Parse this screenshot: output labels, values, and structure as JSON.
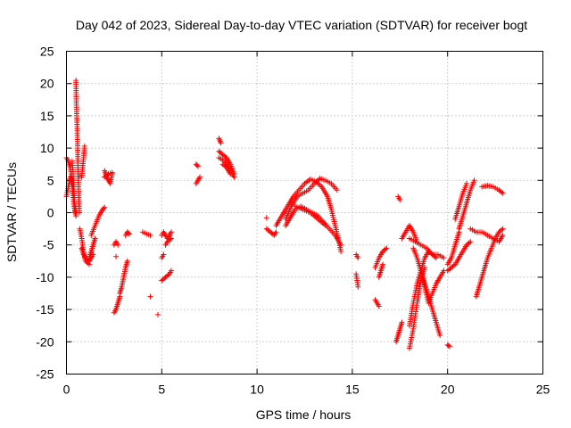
{
  "chart_data": {
    "type": "scatter",
    "title": "Day 042 of 2023, Sidereal Day-to-day VTEC variation (SDTVAR) for receiver bogt",
    "xlabel": "GPS time / hours",
    "ylabel": "SDTVAR / TECUs",
    "xlim": [
      0,
      25
    ],
    "ylim": [
      -25,
      25
    ],
    "xticks": [
      "0",
      "5",
      "10",
      "15",
      "20",
      "25"
    ],
    "yticks": [
      "-25",
      "-20",
      "-15",
      "-10",
      "-5",
      "0",
      "5",
      "10",
      "15",
      "20",
      "25"
    ],
    "grid": true,
    "marker": "+",
    "color": "#ff0000",
    "series": [
      {
        "name": "SDTVAR",
        "segments": [
          [
            [
              0.0,
              8.5
            ],
            [
              0.1,
              8.0
            ],
            [
              0.2,
              7.0
            ],
            [
              0.3,
              5.0
            ],
            [
              0.4,
              2.0
            ],
            [
              0.5,
              0.0
            ]
          ],
          [
            [
              0.0,
              2.5
            ],
            [
              0.1,
              4.0
            ],
            [
              0.2,
              5.5
            ],
            [
              0.3,
              4.0
            ],
            [
              0.4,
              1.0
            ],
            [
              0.5,
              -0.5
            ]
          ],
          [
            [
              0.3,
              8.0
            ],
            [
              0.35,
              6.0
            ],
            [
              0.4,
              3.0
            ],
            [
              0.45,
              0.0
            ]
          ],
          [
            [
              0.5,
              20.5
            ],
            [
              0.52,
              17.0
            ],
            [
              0.55,
              14.0
            ],
            [
              0.58,
              11.0
            ],
            [
              0.6,
              8.0
            ],
            [
              0.62,
              5.0
            ],
            [
              0.65,
              2.0
            ],
            [
              0.68,
              0.0
            ]
          ],
          [
            [
              0.8,
              5.5
            ],
            [
              0.85,
              7.0
            ],
            [
              0.9,
              8.5
            ],
            [
              0.95,
              10.3
            ]
          ],
          [
            [
              0.7,
              -2.5
            ],
            [
              0.8,
              -4.0
            ],
            [
              0.9,
              -6.0
            ],
            [
              1.0,
              -7.5
            ],
            [
              1.2,
              -8.0
            ]
          ],
          [
            [
              0.8,
              -5.5
            ],
            [
              0.9,
              -6.5
            ],
            [
              1.0,
              -7.0
            ],
            [
              1.2,
              -7.5
            ],
            [
              1.4,
              -6.5
            ]
          ],
          [
            [
              1.3,
              -3.5
            ],
            [
              1.5,
              -2.0
            ],
            [
              1.7,
              -0.5
            ],
            [
              1.9,
              0.5
            ],
            [
              2.0,
              0.8
            ]
          ],
          [
            [
              1.2,
              -7.0
            ],
            [
              1.3,
              -6.0
            ],
            [
              1.4,
              -5.0
            ],
            [
              1.5,
              -4.0
            ]
          ],
          [
            [
              2.0,
              6.5
            ],
            [
              2.1,
              5.5
            ],
            [
              2.2,
              5.0
            ],
            [
              2.3,
              4.5
            ],
            [
              2.4,
              6.0
            ]
          ],
          [
            [
              2.0,
              5.5
            ],
            [
              2.2,
              6.0
            ],
            [
              2.4,
              6.2
            ]
          ],
          [
            [
              2.5,
              -15.5
            ],
            [
              2.6,
              -15.0
            ],
            [
              2.7,
              -14.0
            ],
            [
              2.8,
              -13.0
            ]
          ],
          [
            [
              2.5,
              -5.0
            ],
            [
              2.6,
              -4.5
            ],
            [
              2.7,
              -5.0
            ]
          ],
          [
            [
              2.6,
              -6.8
            ]
          ],
          [
            [
              2.8,
              -12.5
            ],
            [
              2.9,
              -11.5
            ],
            [
              3.0,
              -10.0
            ],
            [
              3.1,
              -8.5
            ],
            [
              3.2,
              -7.5
            ]
          ],
          [
            [
              3.1,
              -3.5
            ],
            [
              3.2,
              -3.0
            ],
            [
              3.3,
              -3.3
            ]
          ],
          [
            [
              4.0,
              -3.0
            ],
            [
              4.2,
              -3.3
            ],
            [
              4.4,
              -3.5
            ]
          ],
          [
            [
              4.4,
              -13.0
            ]
          ],
          [
            [
              4.8,
              -15.8
            ]
          ],
          [
            [
              5.0,
              -7.0
            ],
            [
              5.1,
              -6.5
            ]
          ],
          [
            [
              5.0,
              -10.5
            ],
            [
              5.2,
              -10.0
            ],
            [
              5.4,
              -9.5
            ],
            [
              5.5,
              -9.0
            ]
          ],
          [
            [
              5.0,
              -3.5
            ],
            [
              5.1,
              -3.0
            ],
            [
              5.2,
              -3.5
            ],
            [
              5.3,
              -4.0
            ],
            [
              5.5,
              -3.0
            ]
          ],
          [
            [
              5.2,
              -5.0
            ],
            [
              5.3,
              -4.5
            ],
            [
              5.5,
              -4.0
            ]
          ],
          [
            [
              6.8,
              4.5
            ],
            [
              6.9,
              5.0
            ],
            [
              7.0,
              5.5
            ]
          ],
          [
            [
              6.8,
              7.5
            ],
            [
              6.9,
              7.2
            ]
          ],
          [
            [
              8.0,
              11.5
            ],
            [
              8.1,
              10.8
            ]
          ],
          [
            [
              8.0,
              9.5
            ],
            [
              8.2,
              9.0
            ],
            [
              8.4,
              8.5
            ],
            [
              8.6,
              7.5
            ],
            [
              8.8,
              6.0
            ]
          ],
          [
            [
              8.0,
              8.5
            ],
            [
              8.2,
              8.2
            ],
            [
              8.4,
              7.5
            ],
            [
              8.6,
              6.5
            ],
            [
              8.8,
              5.5
            ]
          ],
          [
            [
              8.2,
              7.5
            ],
            [
              8.4,
              7.0
            ],
            [
              8.6,
              6.0
            ]
          ],
          [
            [
              10.5,
              -0.8
            ]
          ],
          [
            [
              10.5,
              -2.5
            ],
            [
              10.7,
              -3.0
            ],
            [
              10.9,
              -3.5
            ],
            [
              11.0,
              -3.0
            ]
          ],
          [
            [
              11.0,
              -2.0
            ],
            [
              11.3,
              -0.5
            ],
            [
              11.6,
              1.0
            ],
            [
              11.9,
              2.5
            ],
            [
              12.2,
              3.5
            ],
            [
              12.5,
              4.5
            ],
            [
              12.8,
              5.2
            ],
            [
              13.1,
              4.8
            ],
            [
              13.4,
              4.0
            ],
            [
              13.7,
              2.5
            ],
            [
              13.9,
              0.5
            ],
            [
              14.1,
              -2.0
            ],
            [
              14.3,
              -4.5
            ],
            [
              14.4,
              -6.0
            ]
          ],
          [
            [
              11.5,
              -1.0
            ],
            [
              11.8,
              1.0
            ],
            [
              12.1,
              2.5
            ],
            [
              12.4,
              3.0
            ],
            [
              12.7,
              3.5
            ],
            [
              13.0,
              4.5
            ],
            [
              13.3,
              5.3
            ],
            [
              13.6,
              5.0
            ],
            [
              13.9,
              4.5
            ],
            [
              14.2,
              3.5
            ]
          ],
          [
            [
              11.5,
              -2.0
            ],
            [
              11.8,
              -0.5
            ],
            [
              12.0,
              0.5
            ],
            [
              12.3,
              1.0
            ],
            [
              12.6,
              0.5
            ],
            [
              12.9,
              0.0
            ],
            [
              13.2,
              -0.5
            ],
            [
              13.5,
              -1.5
            ],
            [
              13.8,
              -2.5
            ],
            [
              14.1,
              -3.5
            ],
            [
              14.4,
              -5.0
            ]
          ],
          [
            [
              12.0,
              1.0
            ],
            [
              12.4,
              0.5
            ],
            [
              12.8,
              0.0
            ],
            [
              13.2,
              -1.0
            ],
            [
              13.6,
              -2.0
            ]
          ],
          [
            [
              15.2,
              -6.5
            ],
            [
              15.3,
              -7.0
            ]
          ],
          [
            [
              15.2,
              -9.5
            ],
            [
              15.3,
              -11.5
            ]
          ],
          [
            [
              16.2,
              -13.5
            ],
            [
              16.3,
              -14.0
            ],
            [
              16.4,
              -14.5
            ]
          ],
          [
            [
              16.2,
              -8.5
            ],
            [
              16.4,
              -7.0
            ],
            [
              16.6,
              -6.0
            ],
            [
              16.8,
              -5.5
            ]
          ],
          [
            [
              16.4,
              -10.0
            ],
            [
              16.5,
              -9.0
            ],
            [
              16.6,
              -8.0
            ]
          ],
          [
            [
              17.4,
              2.5
            ],
            [
              17.5,
              2.0
            ]
          ],
          [
            [
              17.3,
              -20.0
            ],
            [
              17.4,
              -19.0
            ],
            [
              17.5,
              -18.0
            ],
            [
              17.6,
              -17.0
            ]
          ],
          [
            [
              17.6,
              -4.0
            ],
            [
              17.8,
              -3.0
            ],
            [
              18.0,
              -2.0
            ],
            [
              18.2,
              -3.0
            ],
            [
              18.4,
              -4.5
            ]
          ],
          [
            [
              18.0,
              -17.5
            ],
            [
              18.2,
              -14.0
            ],
            [
              18.4,
              -11.0
            ],
            [
              18.6,
              -9.0
            ],
            [
              18.8,
              -7.0
            ],
            [
              19.0,
              -6.0
            ],
            [
              19.2,
              -6.5
            ],
            [
              19.4,
              -7.0
            ]
          ],
          [
            [
              18.0,
              -21.0
            ],
            [
              18.2,
              -18.0
            ],
            [
              18.4,
              -14.0
            ],
            [
              18.6,
              -10.5
            ],
            [
              18.8,
              -8.5
            ]
          ],
          [
            [
              18.2,
              -5.5
            ],
            [
              18.4,
              -7.0
            ],
            [
              18.6,
              -9.0
            ],
            [
              18.8,
              -11.0
            ],
            [
              19.0,
              -13.0
            ],
            [
              19.2,
              -15.0
            ],
            [
              19.4,
              -17.0
            ],
            [
              19.6,
              -19.0
            ]
          ],
          [
            [
              18.6,
              -9.0
            ],
            [
              18.8,
              -11.5
            ],
            [
              19.0,
              -14.0
            ],
            [
              19.2,
              -12.5
            ],
            [
              19.4,
              -11.0
            ],
            [
              19.6,
              -10.0
            ],
            [
              19.8,
              -9.0
            ]
          ],
          [
            [
              18.0,
              -4.0
            ],
            [
              18.3,
              -4.5
            ],
            [
              18.6,
              -5.0
            ],
            [
              18.9,
              -5.5
            ],
            [
              19.2,
              -6.5
            ],
            [
              19.5,
              -6.5
            ],
            [
              19.8,
              -7.0
            ]
          ],
          [
            [
              20.0,
              -20.5
            ],
            [
              20.1,
              -20.7
            ]
          ],
          [
            [
              20.0,
              -8.0
            ],
            [
              20.2,
              -7.0
            ],
            [
              20.4,
              -5.0
            ],
            [
              20.6,
              -3.0
            ]
          ],
          [
            [
              20.0,
              -9.0
            ],
            [
              20.2,
              -8.5
            ],
            [
              20.4,
              -8.0
            ],
            [
              20.6,
              -7.0
            ],
            [
              20.8,
              -6.0
            ],
            [
              21.0,
              -5.0
            ],
            [
              21.2,
              -4.5
            ]
          ],
          [
            [
              20.6,
              -2.5
            ],
            [
              20.8,
              -0.5
            ],
            [
              21.0,
              1.5
            ],
            [
              21.2,
              3.5
            ],
            [
              21.4,
              5.0
            ]
          ],
          [
            [
              20.4,
              -1.0
            ],
            [
              20.6,
              1.0
            ],
            [
              20.8,
              3.0
            ],
            [
              21.0,
              4.5
            ]
          ],
          [
            [
              21.2,
              -2.5
            ],
            [
              21.5,
              -3.0
            ],
            [
              21.8,
              -3.0
            ],
            [
              22.1,
              -3.5
            ],
            [
              22.4,
              -4.0
            ],
            [
              22.7,
              -4.5
            ],
            [
              22.9,
              -3.5
            ]
          ],
          [
            [
              21.5,
              -13.0
            ],
            [
              21.7,
              -11.0
            ],
            [
              21.9,
              -9.0
            ],
            [
              22.1,
              -7.0
            ],
            [
              22.3,
              -5.5
            ],
            [
              22.5,
              -4.0
            ],
            [
              22.7,
              -3.0
            ],
            [
              22.9,
              -2.5
            ]
          ],
          [
            [
              21.8,
              4.0
            ],
            [
              22.1,
              4.2
            ],
            [
              22.4,
              4.0
            ],
            [
              22.7,
              3.5
            ],
            [
              22.9,
              3.0
            ]
          ]
        ]
      }
    ]
  }
}
